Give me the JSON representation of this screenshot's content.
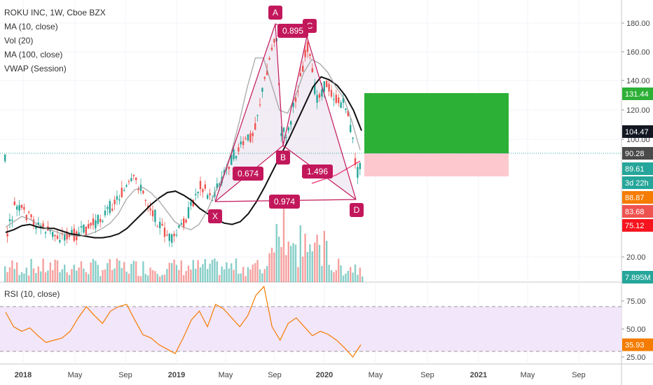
{
  "legend": {
    "symbol": "ROKU INC, 1W, Cboe BZX",
    "ma10": "MA (10, close)",
    "vol": "Vol (20)",
    "ma100": "MA (100, close)",
    "vwap": "VWAP (Session)"
  },
  "rsi_legend": "RSI (10, close)",
  "colors": {
    "up": "#26a69a",
    "down": "#ef5350",
    "pattern": "#c2185b",
    "pattern_fill": "#ece4f0",
    "target_zone": "#2db036",
    "stop_zone": "#fdc9cf",
    "rsi_line": "#f57c00",
    "rsi_band": "#f2e6fb",
    "ma100": "#111111",
    "ma10": "#999999",
    "price_line": "#26a69a"
  },
  "chart_data": [
    {
      "type": "candlestick",
      "title": "ROKU INC, 1W, Cboe BZX",
      "y_ticks": [
        "180.00",
        "160.00",
        "140.00",
        "120.00",
        "100.00",
        "20.00"
      ],
      "x_ticks": [
        "2018",
        "May",
        "Sep",
        "2019",
        "May",
        "Sep",
        "2020",
        "May",
        "Sep",
        "2021",
        "May",
        "Sep"
      ],
      "price_badges": [
        {
          "label": "131.44",
          "color": "#2db036"
        },
        {
          "label": "104.47",
          "color": "#131722"
        },
        {
          "label": "90.28",
          "color": "#4a4a4a"
        },
        {
          "label": "89.61",
          "color": "#26a69a"
        },
        {
          "label": "3d 22h",
          "color": "#26a69a"
        },
        {
          "label": "88.87",
          "color": "#f57c00"
        },
        {
          "label": "83.68",
          "color": "#ef5350"
        },
        {
          "label": "75.12",
          "color": "#f7141f"
        },
        {
          "label": "7.895M",
          "color": "#26a69a"
        }
      ],
      "harmonic_pattern": {
        "points": [
          {
            "label": "X",
            "price": 48
          },
          {
            "label": "A",
            "price": 180
          },
          {
            "label": "B",
            "price": 83
          },
          {
            "label": "C",
            "price": 170
          },
          {
            "label": "D",
            "price": 48
          }
        ],
        "ratios": {
          "XB": "0.674",
          "AC": "0.895",
          "BD": "1.496",
          "XD": "0.974"
        }
      },
      "position": {
        "target": 131.44,
        "entry": 90.28,
        "stop": 75.12
      },
      "series": [
        {
          "name": "MA (100, close)",
          "values": [
            30,
            32,
            35,
            36,
            34,
            33,
            33,
            31,
            29,
            28,
            27,
            26,
            26,
            27,
            29,
            33,
            39,
            45,
            51,
            56,
            60,
            61,
            58,
            54,
            48,
            44,
            40,
            37,
            36,
            38,
            44,
            53,
            64,
            76,
            88,
            100,
            112,
            124,
            136,
            143,
            141,
            137,
            130,
            120,
            106
          ]
        },
        {
          "name": "MA (10, close)",
          "values": [
            34,
            38,
            42,
            40,
            36,
            33,
            31,
            29,
            28,
            27,
            28,
            30,
            33,
            37,
            44,
            55,
            62,
            64,
            60,
            54,
            46,
            38,
            34,
            32,
            36,
            46,
            60,
            72,
            90,
            112,
            136,
            156,
            156,
            138,
            120,
            118,
            130,
            146,
            155,
            152,
            146,
            136,
            128,
            112,
            92
          ]
        }
      ]
    },
    {
      "type": "line",
      "title": "RSI (10, close)",
      "y_ticks": [
        "75.00",
        "50.00",
        "25.00"
      ],
      "ylim": [
        15,
        90
      ],
      "band": [
        30,
        70
      ],
      "last_value": "35.93",
      "values": [
        65,
        52,
        48,
        51,
        44,
        38,
        40,
        42,
        48,
        60,
        70,
        62,
        55,
        66,
        70,
        72,
        58,
        45,
        42,
        36,
        32,
        28,
        42,
        58,
        66,
        52,
        72,
        68,
        60,
        52,
        62,
        80,
        88,
        52,
        40,
        55,
        60,
        52,
        44,
        48,
        45,
        40,
        33,
        25,
        35.93
      ]
    }
  ]
}
